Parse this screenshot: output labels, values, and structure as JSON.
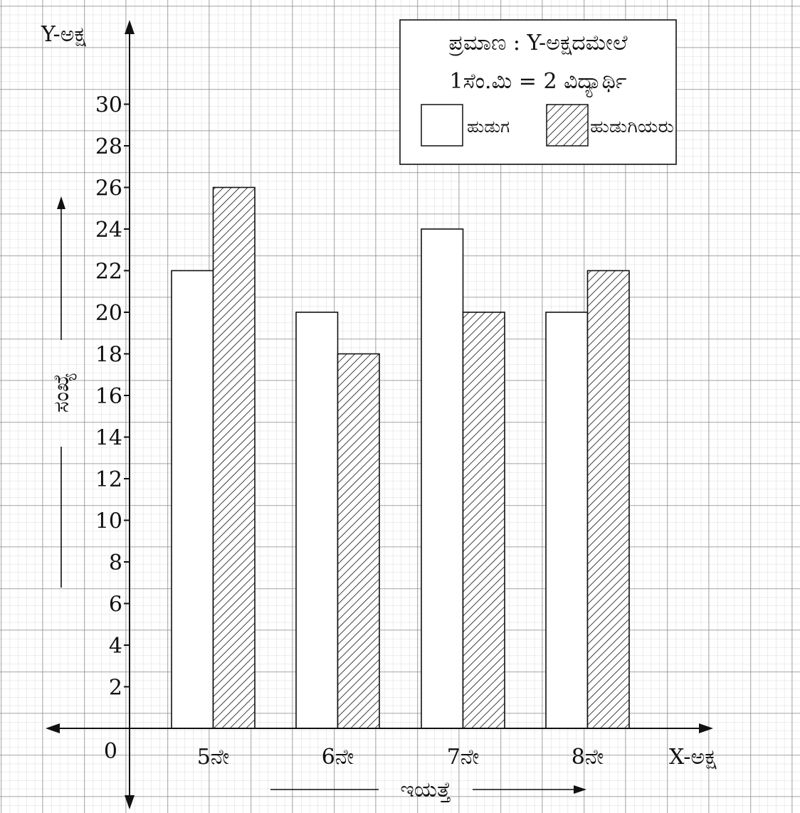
{
  "chart_data": {
    "type": "bar",
    "categories": [
      "5ನೇ",
      "6ನೇ",
      "7ನೇ",
      "8ನೇ"
    ],
    "series": [
      {
        "name": "ಹುಡುಗ",
        "values": [
          22,
          20,
          24,
          20
        ],
        "fill": "#ffffff"
      },
      {
        "name": "ಹುಡುಗಿಯರು",
        "values": [
          26,
          18,
          20,
          22
        ],
        "fill": "hatch"
      }
    ],
    "origin_label": "0",
    "yticks": [
      2,
      4,
      6,
      8,
      10,
      12,
      14,
      16,
      18,
      20,
      22,
      24,
      26,
      28,
      30
    ],
    "ylim": [
      0,
      32
    ],
    "xlabel": "ಇಯತ್ತೆ",
    "ylabel": "ಸಂಖ್ಯೆ",
    "x_axis_name": "X-ಅಕ್ಷ",
    "y_axis_name": "Y-ಅಕ್ಷ",
    "grid": true,
    "legend_position": "top-right",
    "scale_line1": "ಪ್ರಮಾಣ : Y-ಅಕ್ಷದಮೇಲೆ",
    "scale_line2": "1ಸೆಂ.ಮಿ = 2 ವಿದ್ಯಾರ್ಥಿ"
  },
  "colors": {
    "grid_major": "#8a8a8a",
    "grid_minor": "#cfcfcf",
    "ink": "#111111",
    "bar_outline": "#111111"
  }
}
